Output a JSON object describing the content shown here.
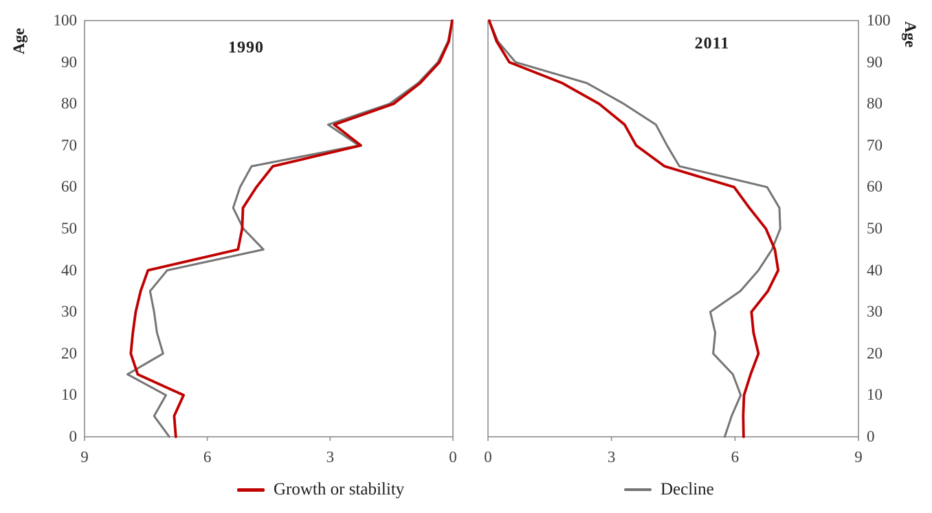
{
  "page_background": "#ffffff",
  "colors": {
    "growth": "#C00000",
    "decline": "#757575",
    "panel_border": "#8C8C8C",
    "tick_text": "#3f3f3f",
    "title_text": "#1f1f1f"
  },
  "y_axis": {
    "label": "Age",
    "tick_values": [
      100,
      90,
      80,
      70,
      60,
      50,
      40,
      30,
      20,
      10,
      0
    ]
  },
  "legend": {
    "items": [
      {
        "key": "growth",
        "label": "Growth or stability",
        "color": "#C00000",
        "thickness": 5
      },
      {
        "key": "decline",
        "label": "Decline",
        "color": "#757575",
        "thickness": 3.5
      }
    ]
  },
  "chart_data": [
    {
      "type": "line",
      "title": "1990",
      "orientation": "age-profile, value axis horizontal",
      "xlabel": "",
      "ylabel": "Age",
      "xlim": [
        0,
        9
      ],
      "x_reversed": true,
      "x_tick_values": [
        9,
        6,
        3,
        0
      ],
      "ylim": [
        0,
        100
      ],
      "ages": [
        0,
        5,
        10,
        15,
        20,
        25,
        30,
        35,
        40,
        45,
        50,
        55,
        60,
        65,
        70,
        75,
        80,
        85,
        90,
        95,
        100
      ],
      "series": [
        {
          "name": "Growth or stability",
          "color": "#C00000",
          "width": 3.8,
          "values": [
            6.77,
            6.81,
            6.58,
            7.7,
            7.87,
            7.82,
            7.75,
            7.63,
            7.45,
            5.25,
            5.15,
            5.13,
            4.8,
            4.4,
            2.25,
            2.9,
            1.45,
            0.8,
            0.33,
            0.1,
            0.02
          ]
        },
        {
          "name": "Decline",
          "color": "#757575",
          "width": 3.0,
          "values": [
            6.93,
            7.3,
            7.01,
            7.95,
            7.08,
            7.23,
            7.3,
            7.4,
            6.98,
            4.63,
            5.12,
            5.37,
            5.2,
            4.92,
            2.3,
            3.05,
            1.55,
            0.85,
            0.37,
            0.12,
            0.02
          ]
        }
      ]
    },
    {
      "type": "line",
      "title": "2011",
      "orientation": "age-profile, value axis horizontal",
      "xlabel": "",
      "ylabel": "Age",
      "xlim": [
        0,
        9
      ],
      "x_reversed": false,
      "x_tick_values": [
        0,
        3,
        6,
        9
      ],
      "ylim": [
        0,
        100
      ],
      "ages": [
        0,
        5,
        10,
        15,
        20,
        25,
        30,
        35,
        40,
        45,
        50,
        55,
        60,
        65,
        70,
        75,
        80,
        85,
        90,
        95,
        100
      ],
      "series": [
        {
          "name": "Growth or stability",
          "color": "#C00000",
          "width": 3.8,
          "values": [
            6.21,
            6.2,
            6.22,
            6.38,
            6.57,
            6.45,
            6.4,
            6.8,
            7.05,
            6.97,
            6.75,
            6.35,
            5.98,
            4.29,
            3.6,
            3.32,
            2.7,
            1.8,
            0.52,
            0.21,
            0.03
          ]
        },
        {
          "name": "Decline",
          "color": "#757575",
          "width": 3.0,
          "values": [
            5.75,
            5.92,
            6.14,
            5.95,
            5.47,
            5.52,
            5.4,
            6.13,
            6.57,
            6.9,
            7.1,
            7.08,
            6.78,
            4.65,
            4.35,
            4.08,
            3.3,
            2.4,
            0.67,
            0.24,
            0.03
          ]
        }
      ]
    }
  ]
}
